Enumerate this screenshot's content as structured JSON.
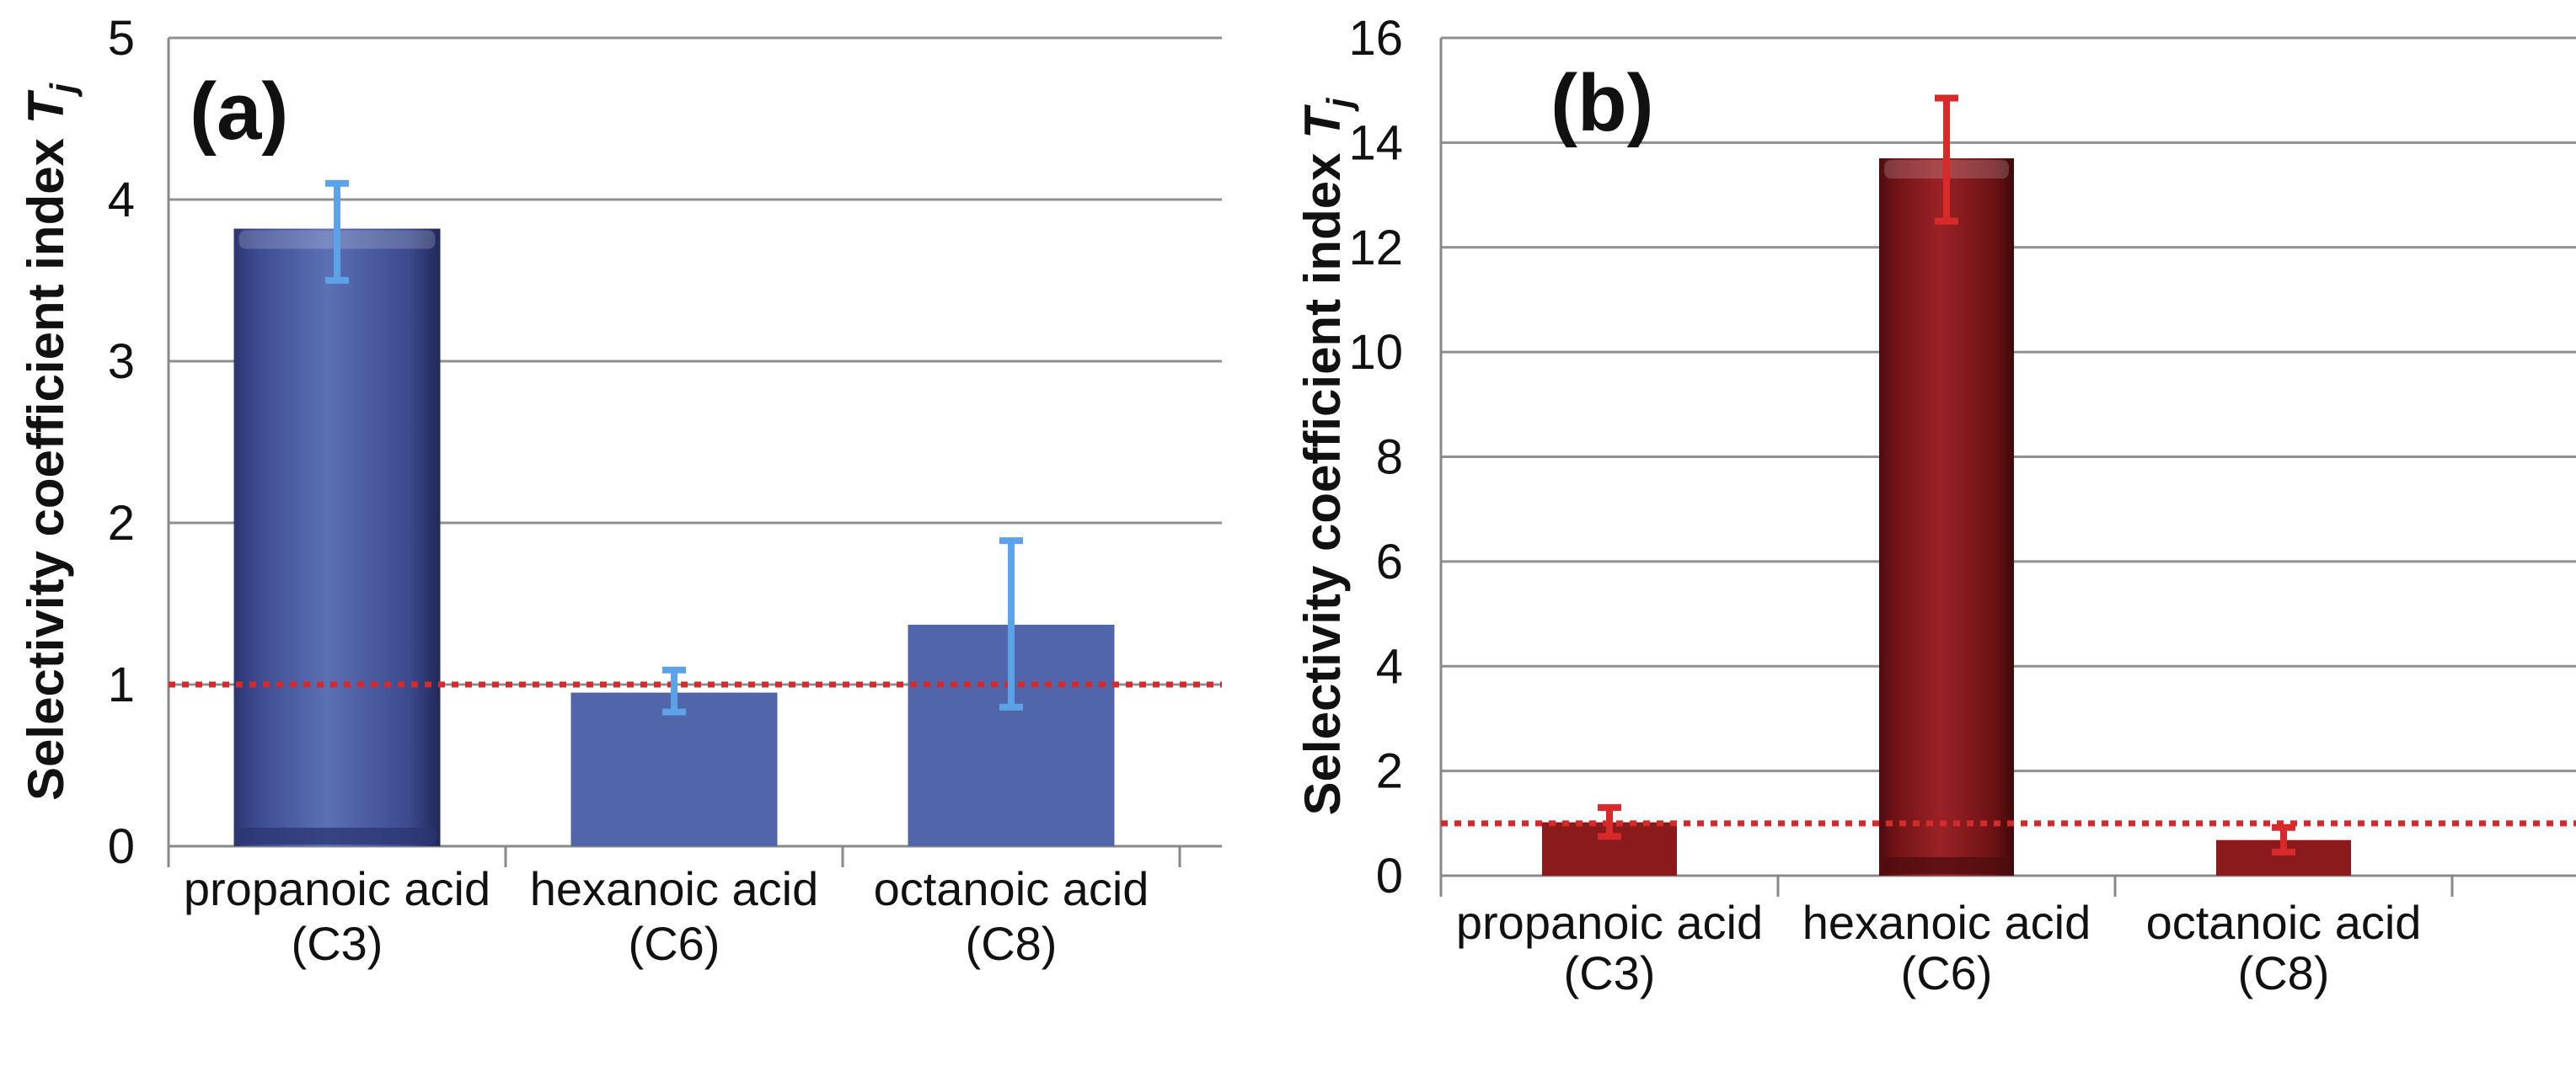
{
  "chart_data": [
    {
      "type": "bar",
      "panel_label": "(a)",
      "ylabel": "Selectivity coefficient index",
      "ylabel_symbol": "T",
      "ylabel_subscript": "j",
      "ylim": [
        0,
        5
      ],
      "yticks": [
        0,
        1,
        2,
        3,
        4,
        5
      ],
      "grid": true,
      "reference_line": {
        "value": 1,
        "style": "dotted",
        "color": "#d42a2a"
      },
      "highlighted_tick": 1,
      "categories": [
        {
          "line1": "propanoic acid",
          "line2": "(C3)",
          "highlighted": true
        },
        {
          "line1": "hexanoic acid",
          "line2": "(C6)",
          "highlighted": false
        },
        {
          "line1": "octanoic acid",
          "line2": "(C8)",
          "highlighted": false
        }
      ],
      "values": [
        3.82,
        0.95,
        1.37
      ],
      "error_low": [
        3.5,
        0.83,
        0.86
      ],
      "error_high": [
        4.1,
        1.09,
        1.89
      ],
      "bar_styles": [
        "glossy",
        "flat",
        "flat"
      ],
      "bar_color": "#5166aa",
      "bar_dark_color": "#2b3673",
      "error_color": "#5ba3e6",
      "highlight_text_color": "#b3282d"
    },
    {
      "type": "bar",
      "panel_label": "(b)",
      "ylabel": "Selectivity coefficient index",
      "ylabel_symbol": "T",
      "ylabel_subscript": "j",
      "ylim": [
        0,
        16
      ],
      "yticks": [
        0,
        2,
        4,
        6,
        8,
        10,
        12,
        14,
        16
      ],
      "grid": true,
      "reference_line": {
        "value": 1,
        "style": "dotted",
        "color": "#d42a2a"
      },
      "categories": [
        {
          "line1": "propanoic acid",
          "line2": "(C3)",
          "highlighted": false
        },
        {
          "line1": "hexanoic acid",
          "line2": "(C6)",
          "highlighted": true
        },
        {
          "line1": "octanoic acid",
          "line2": "(C8)",
          "highlighted": false
        }
      ],
      "values": [
        1.02,
        13.7,
        0.68
      ],
      "error_low": [
        0.75,
        12.5,
        0.45
      ],
      "error_high": [
        1.3,
        14.85,
        0.92
      ],
      "bar_styles": [
        "flat",
        "glossy",
        "flat"
      ],
      "bar_color": "#8b1a1d",
      "bar_dark_color": "#4e0c0e",
      "error_color": "#d82a2a",
      "highlight_text_color": "#b3282d"
    }
  ]
}
